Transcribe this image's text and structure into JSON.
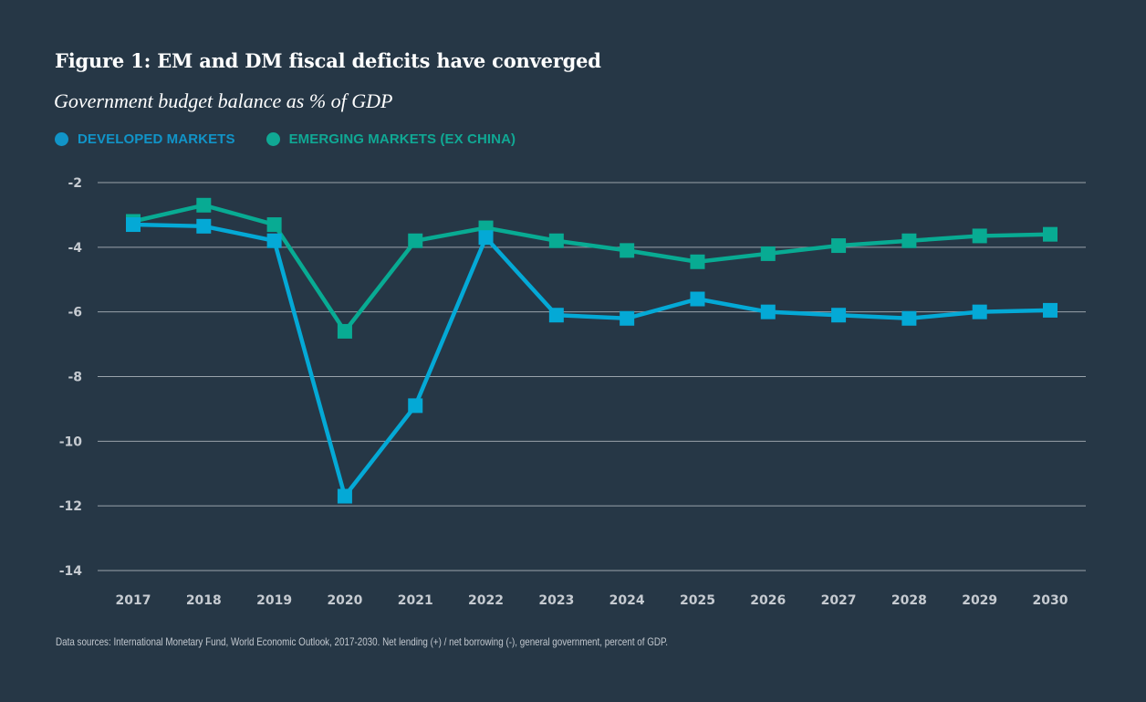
{
  "header": {
    "title": "Figure 1: EM and DM fiscal deficits have converged",
    "subtitle": "Government budget balance as % of GDP"
  },
  "footer": {
    "source": "Data sources: International Monetary Fund, World Economic Outlook, 2017-2030. Net lending (+) / net borrowing (-), general government, percent of GDP."
  },
  "chart_data": {
    "type": "line",
    "title": "Figure 1: EM and DM fiscal deficits have converged",
    "subtitle": "Government budget balance as % of GDP",
    "xlabel": "",
    "ylabel": "",
    "x": [
      "2017",
      "2018",
      "2019",
      "2020",
      "2021",
      "2022",
      "2023",
      "2024",
      "2025",
      "2026",
      "2027",
      "2028",
      "2029",
      "2030"
    ],
    "ylim": [
      -14,
      -2
    ],
    "yticks": [
      -2,
      -4,
      -6,
      -8,
      -10,
      -12,
      -14
    ],
    "ytick_labels": [
      "-2",
      "-4",
      "-6",
      "-8",
      "-10",
      "-12",
      "-14"
    ],
    "grid": true,
    "legend_position": "top-left",
    "marker": "square",
    "series": [
      {
        "name": "DEVELOPED MARKETS",
        "color": "#04a9d6",
        "legend_color": "#1194c8",
        "values": [
          -3.3,
          -3.35,
          -3.8,
          -11.7,
          -8.9,
          -3.7,
          -6.1,
          -6.2,
          -5.6,
          -6.0,
          -6.1,
          -6.2,
          -6.0,
          -5.95
        ]
      },
      {
        "name": "EMERGING MARKETS (EX CHINA)",
        "color": "#08ab93",
        "legend_color": "#10a894",
        "values": [
          -3.2,
          -2.7,
          -3.3,
          -6.6,
          -3.8,
          -3.4,
          -3.8,
          -4.1,
          -4.45,
          -4.2,
          -3.95,
          -3.8,
          -3.65,
          -3.6
        ]
      }
    ]
  }
}
